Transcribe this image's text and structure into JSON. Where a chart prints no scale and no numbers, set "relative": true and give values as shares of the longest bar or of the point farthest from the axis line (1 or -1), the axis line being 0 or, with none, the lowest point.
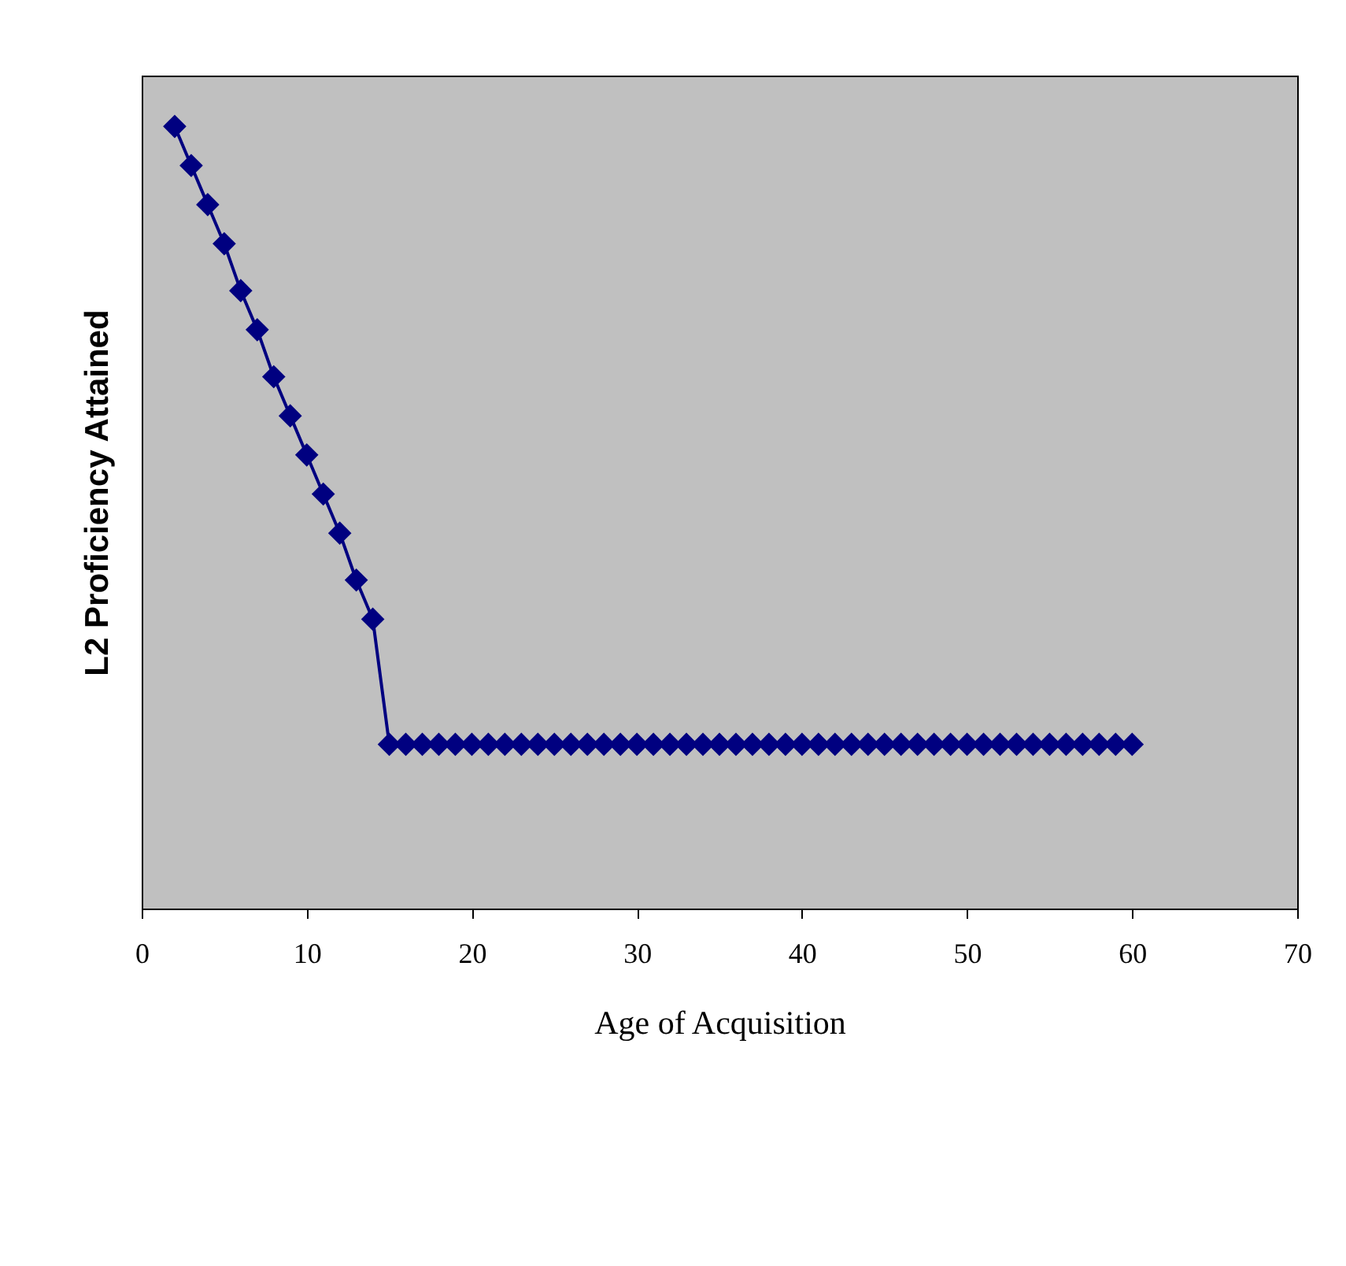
{
  "chart_data": {
    "type": "line",
    "xlabel": "Age of Acquisition",
    "ylabel": "L2 Proficiency Attained",
    "relative": true,
    "marker": "diamond",
    "line_style": "solid",
    "grid": false,
    "xlim": [
      0,
      70
    ],
    "xticks": [
      0,
      10,
      20,
      30,
      40,
      50,
      60,
      70
    ],
    "x": [
      2,
      3,
      4,
      5,
      6,
      7,
      8,
      9,
      10,
      11,
      12,
      13,
      14,
      15,
      16,
      17,
      18,
      19,
      20,
      21,
      22,
      23,
      24,
      25,
      26,
      27,
      28,
      29,
      30,
      31,
      32,
      33,
      34,
      35,
      36,
      37,
      38,
      39,
      40,
      41,
      42,
      43,
      44,
      45,
      46,
      47,
      48,
      49,
      50,
      51,
      52,
      53,
      54,
      55,
      56,
      57,
      58,
      59,
      60
    ],
    "series": [
      {
        "color": "#000080",
        "values": [
          1,
          0.95,
          0.9,
          0.85,
          0.79,
          0.74,
          0.68,
          0.63,
          0.58,
          0.53,
          0.48,
          0.42,
          0.37,
          0.21,
          0.21,
          0.21,
          0.21,
          0.21,
          0.21,
          0.21,
          0.21,
          0.21,
          0.21,
          0.21,
          0.21,
          0.21,
          0.21,
          0.21,
          0.21,
          0.21,
          0.21,
          0.21,
          0.21,
          0.21,
          0.21,
          0.21,
          0.21,
          0.21,
          0.21,
          0.21,
          0.21,
          0.21,
          0.21,
          0.21,
          0.21,
          0.21,
          0.21,
          0.21,
          0.21,
          0.21,
          0.21,
          0.21,
          0.21,
          0.21,
          0.21,
          0.21,
          0.21,
          0.21,
          0.21
        ]
      }
    ]
  }
}
